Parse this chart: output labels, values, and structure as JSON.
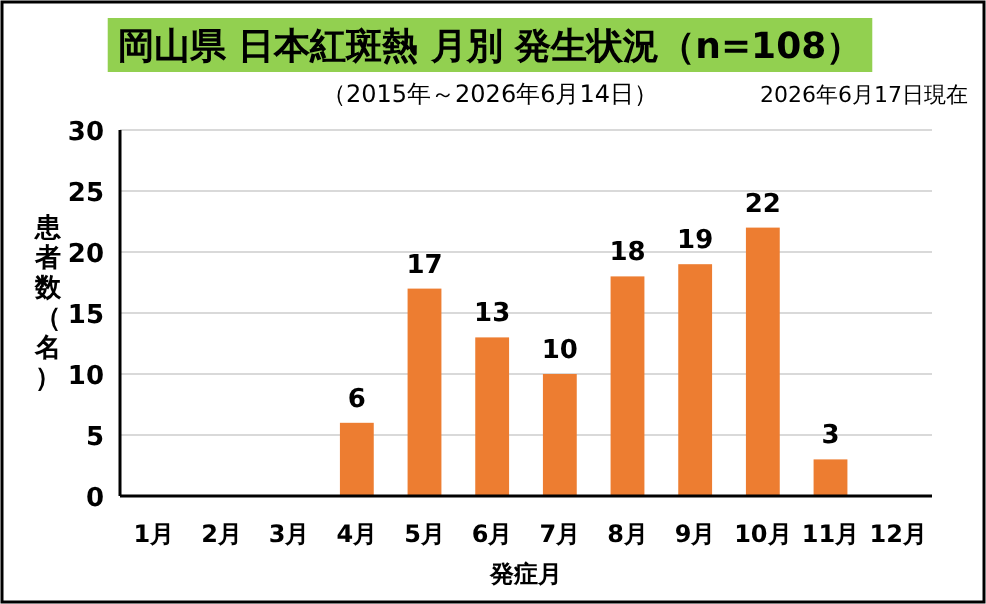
{
  "chart_data": {
    "type": "bar",
    "title": "岡山県 日本紅斑熱 月別 発生状況（n=108）",
    "subtitle": "（2015年～2026年6月14日）",
    "annotations": [
      "2026年6月17日現在"
    ],
    "xlabel": "発症月",
    "ylabel": "患者数（名）",
    "categories": [
      "1月",
      "2月",
      "3月",
      "4月",
      "5月",
      "6月",
      "7月",
      "8月",
      "9月",
      "10月",
      "11月",
      "12月"
    ],
    "values": [
      0,
      0,
      0,
      6,
      17,
      13,
      10,
      18,
      19,
      22,
      3,
      0
    ],
    "value_labels": [
      null,
      null,
      null,
      "6",
      "17",
      "13",
      "10",
      "18",
      "19",
      "22",
      "3",
      null
    ],
    "color": "#ed7d31",
    "ylim": [
      0,
      30
    ],
    "yticks": [
      0,
      5,
      10,
      15,
      20,
      25,
      30
    ],
    "grid": "y"
  }
}
